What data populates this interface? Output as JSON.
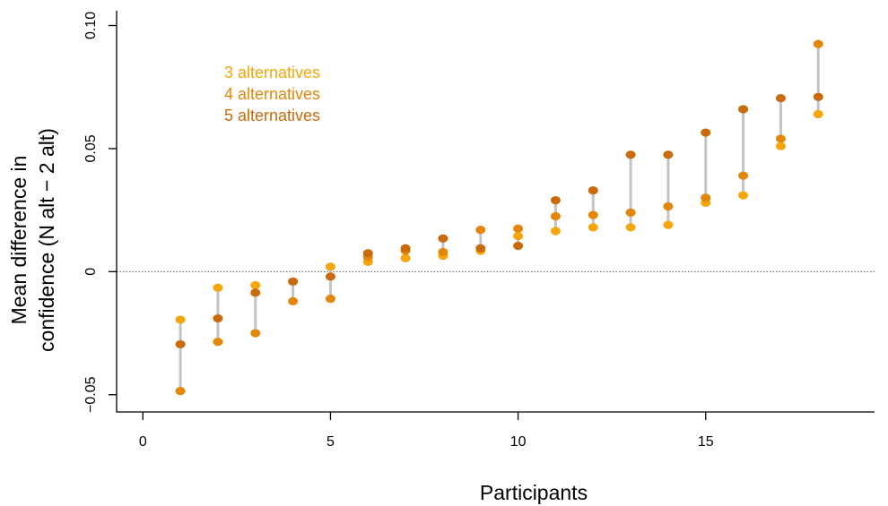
{
  "chart_data": {
    "type": "scatter",
    "title": "",
    "xlabel": "Participants",
    "ylabel_lines": [
      "Mean difference in",
      "confidence (N alt  −  2 alt)"
    ],
    "xlim": [
      -0.7,
      19.5
    ],
    "ylim": [
      -0.057,
      0.106
    ],
    "x_ticks": [
      0,
      5,
      10,
      15
    ],
    "x_tick_labels": [
      "0",
      "5",
      "10",
      "15"
    ],
    "y_ticks": [
      -0.05,
      0,
      0.05,
      0.1
    ],
    "y_tick_labels": [
      "−0.05",
      "0",
      "0.05",
      "0.10"
    ],
    "reference_line_y": 0,
    "grid": false,
    "legend_position": "top-left",
    "x": [
      1,
      2,
      3,
      4,
      5,
      6,
      7,
      8,
      9,
      10,
      11,
      12,
      13,
      14,
      15,
      16,
      17,
      18
    ],
    "series": [
      {
        "name": "3 alternatives",
        "color": "#f5a60a",
        "values": [
          -0.0195,
          -0.0065,
          -0.0055,
          -0.004,
          0.002,
          0.004,
          0.0055,
          0.0065,
          0.0085,
          0.0145,
          0.0165,
          0.018,
          0.018,
          0.019,
          0.028,
          0.031,
          0.051,
          0.064
        ]
      },
      {
        "name": "4 alternatives",
        "color": "#e3870a",
        "values": [
          -0.0485,
          -0.0285,
          -0.025,
          -0.012,
          -0.011,
          0.006,
          0.0085,
          0.008,
          0.017,
          0.0175,
          0.0225,
          0.023,
          0.024,
          0.0265,
          0.03,
          0.039,
          0.054,
          0.0925
        ]
      },
      {
        "name": "5 alternatives",
        "color": "#c96a0c",
        "values": [
          -0.0295,
          -0.019,
          -0.0085,
          -0.004,
          -0.002,
          0.0075,
          0.0095,
          0.0135,
          0.0095,
          0.0105,
          0.029,
          0.033,
          0.0475,
          0.0475,
          0.0565,
          0.066,
          0.0705,
          0.071
        ]
      }
    ]
  }
}
